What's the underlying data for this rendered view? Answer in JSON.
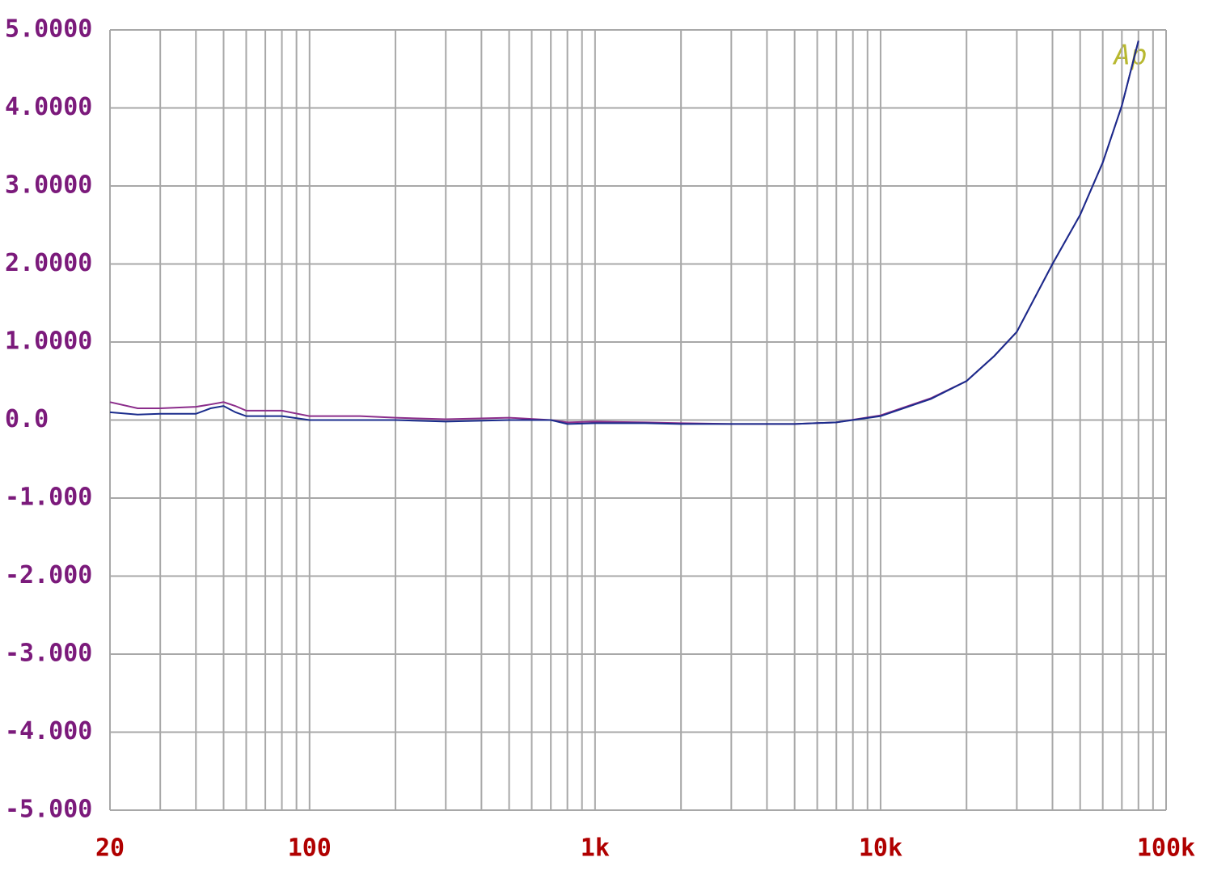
{
  "chart_data": {
    "type": "line",
    "annotation": "Ap",
    "xscale": "log",
    "xlim": [
      20,
      100000
    ],
    "ylim": [
      -5,
      5
    ],
    "xticks": [
      20,
      100,
      {
        "value": 1000,
        "label": "1k"
      },
      {
        "value": 10000,
        "label": "10k"
      },
      {
        "value": 100000,
        "label": "100k"
      }
    ],
    "x_minor_ticks": [
      30,
      40,
      50,
      60,
      70,
      80,
      90,
      200,
      300,
      400,
      500,
      600,
      700,
      800,
      900,
      2000,
      3000,
      4000,
      5000,
      6000,
      7000,
      8000,
      9000,
      20000,
      30000,
      40000,
      50000,
      60000,
      70000,
      80000,
      90000
    ],
    "yticks": [
      {
        "value": 5,
        "label": "5.0000"
      },
      {
        "value": 4,
        "label": "4.0000"
      },
      {
        "value": 3,
        "label": "3.0000"
      },
      {
        "value": 2,
        "label": "2.0000"
      },
      {
        "value": 1,
        "label": "1.0000"
      },
      {
        "value": 0,
        "label": "0.0"
      },
      {
        "value": -1,
        "label": "-1.000"
      },
      {
        "value": -2,
        "label": "-2.000"
      },
      {
        "value": -3,
        "label": "-3.000"
      },
      {
        "value": -4,
        "label": "-4.000"
      },
      {
        "value": -5,
        "label": "-5.000"
      }
    ],
    "grid": true,
    "x": [
      20,
      25,
      30,
      40,
      45,
      50,
      55,
      60,
      70,
      80,
      100,
      150,
      200,
      300,
      500,
      700,
      800,
      1000,
      1500,
      2000,
      3000,
      5000,
      7000,
      10000,
      15000,
      20000,
      25000,
      30000,
      40000,
      50000,
      60000,
      70000,
      80000
    ],
    "series": [
      {
        "color": "#8b2d8b",
        "values": [
          0.23,
          0.15,
          0.15,
          0.17,
          0.2,
          0.23,
          0.18,
          0.12,
          0.12,
          0.12,
          0.05,
          0.05,
          0.03,
          0.01,
          0.03,
          0.0,
          -0.03,
          -0.02,
          -0.03,
          -0.04,
          -0.05,
          -0.05,
          -0.03,
          0.06,
          0.28,
          0.5,
          0.82,
          1.13,
          2.0,
          2.63,
          3.3,
          4.03,
          4.86
        ]
      },
      {
        "color": "#1a2c8c",
        "values": [
          0.1,
          0.07,
          0.08,
          0.08,
          0.15,
          0.18,
          0.1,
          0.05,
          0.05,
          0.05,
          0.0,
          0.0,
          0.0,
          -0.02,
          0.0,
          0.0,
          -0.05,
          -0.04,
          -0.04,
          -0.05,
          -0.05,
          -0.05,
          -0.03,
          0.05,
          0.27,
          0.5,
          0.82,
          1.13,
          2.0,
          2.63,
          3.3,
          4.03,
          4.86
        ]
      }
    ]
  }
}
